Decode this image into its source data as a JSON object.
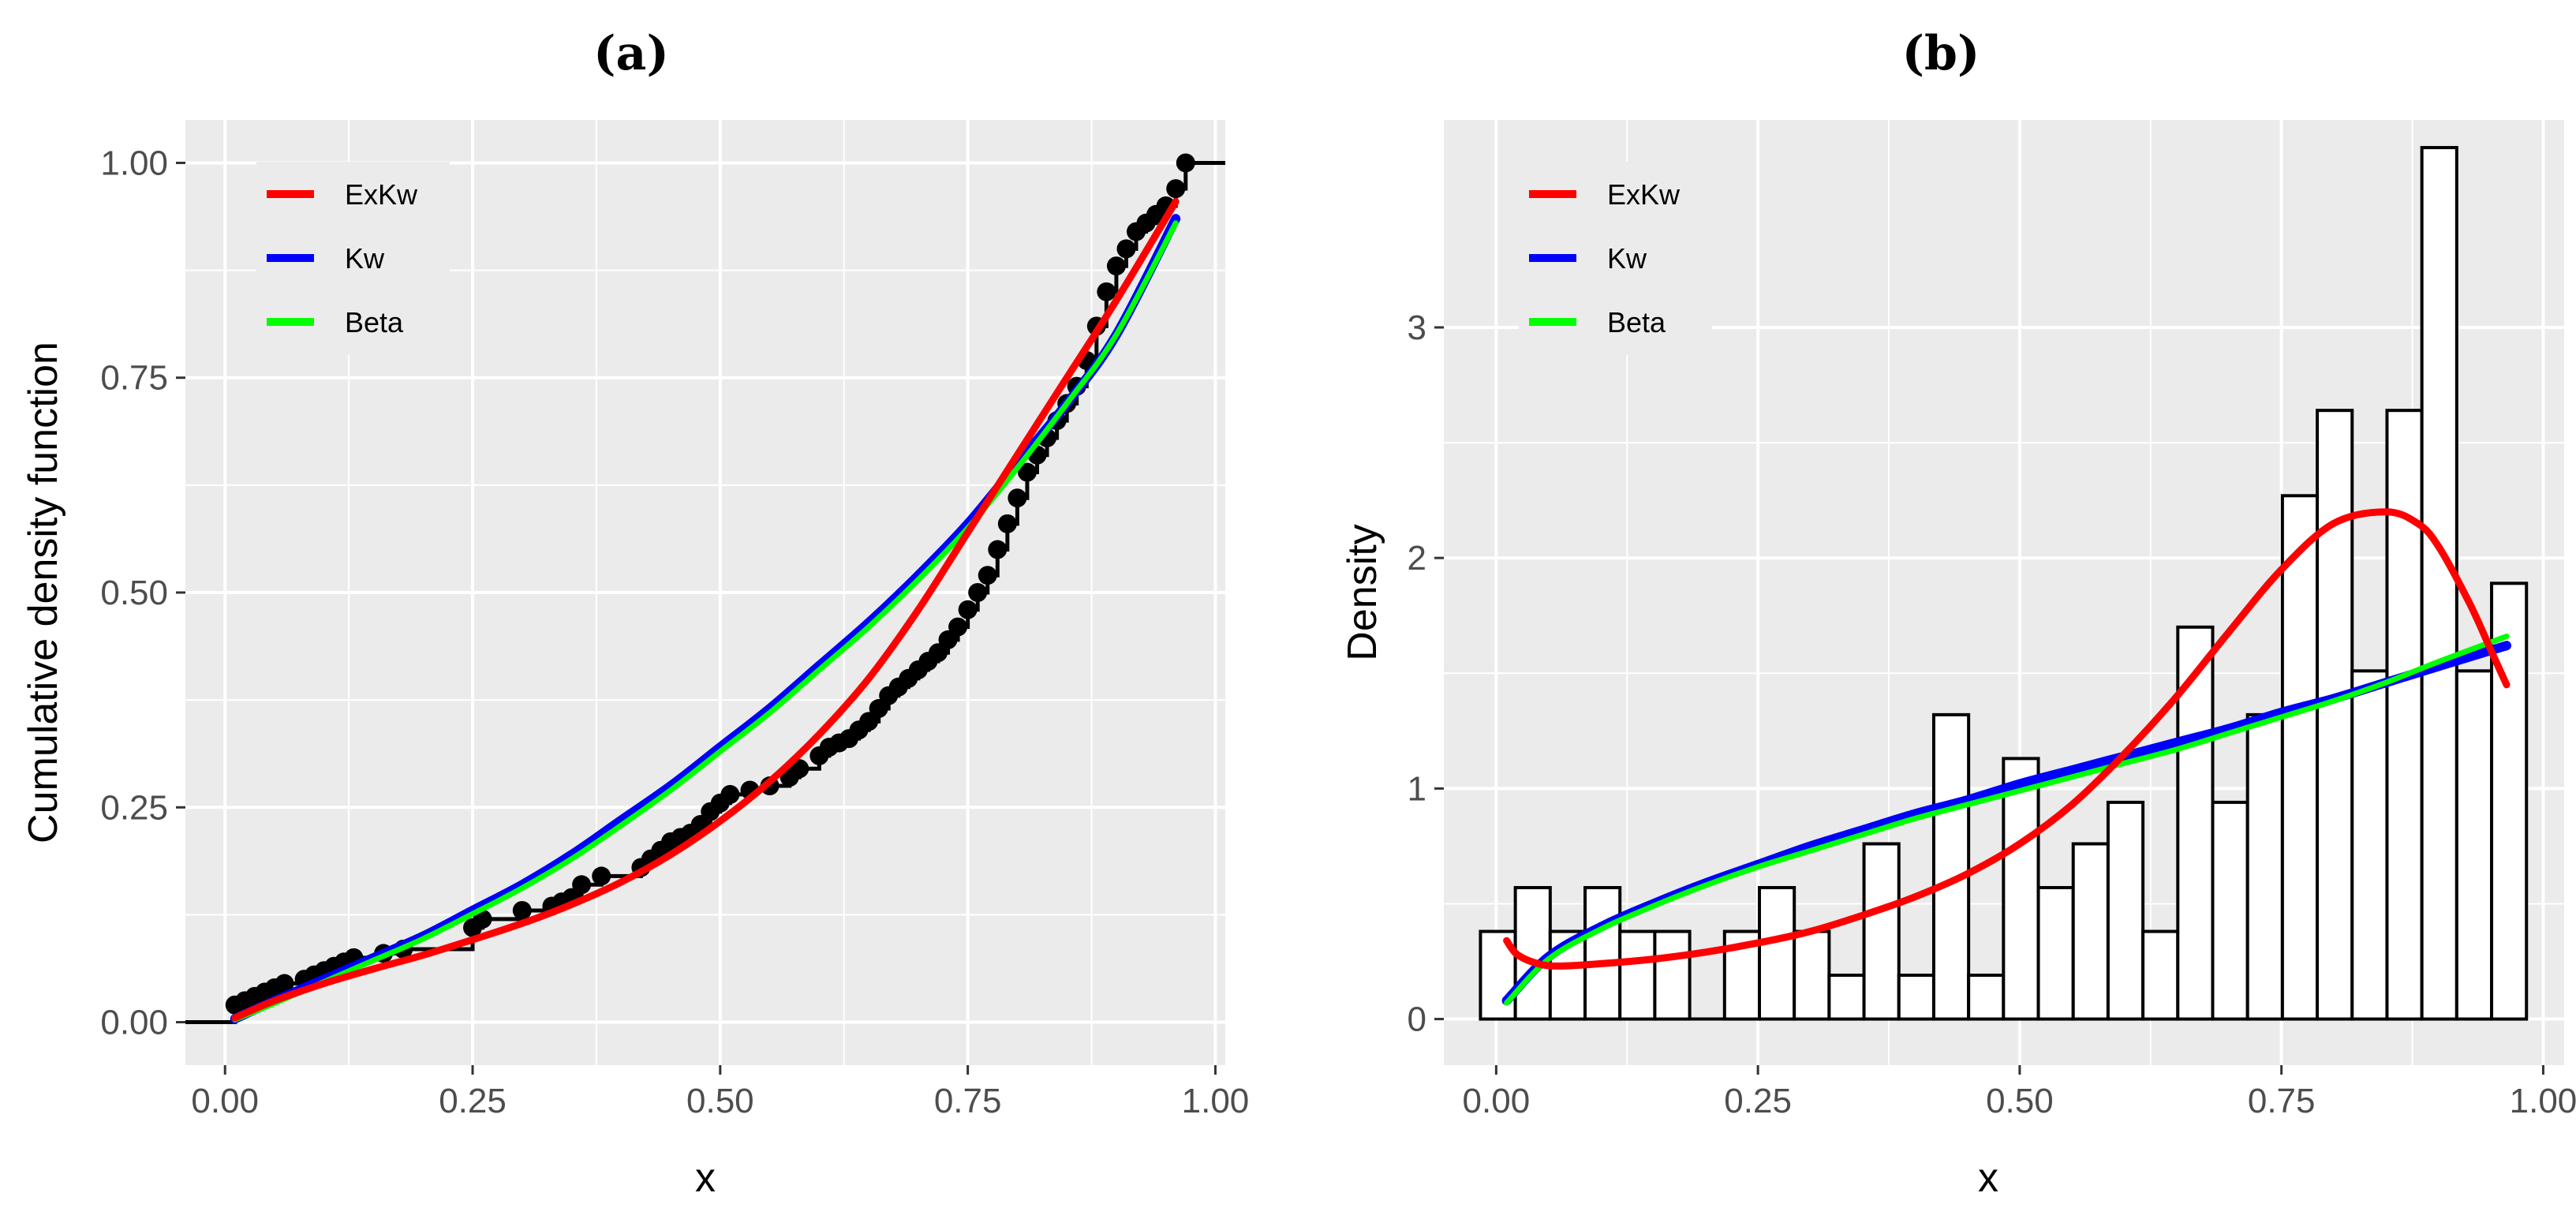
{
  "chart_data": [
    {
      "panel_title": "(a)",
      "type": "line",
      "xlabel": "x",
      "ylabel": "Cumulative density function",
      "xlim": [
        -0.04,
        1.01
      ],
      "ylim": [
        -0.05,
        1.05
      ],
      "x_ticks": [
        "0.00",
        "0.25",
        "0.50",
        "0.75",
        "1.00"
      ],
      "y_ticks": [
        "0.00",
        "0.25",
        "0.50",
        "0.75",
        "1.00"
      ],
      "grid": true,
      "legend_position": "top-left",
      "legend": [
        {
          "name": "ExKw",
          "color": "#ff0000"
        },
        {
          "name": "Kw",
          "color": "#0000ff"
        },
        {
          "name": "Beta",
          "color": "#00ff00"
        }
      ],
      "empirical_cdf": {
        "color": "#000000",
        "x": [
          0.01,
          0.02,
          0.03,
          0.04,
          0.05,
          0.06,
          0.08,
          0.09,
          0.1,
          0.11,
          0.12,
          0.13,
          0.16,
          0.18,
          0.25,
          0.26,
          0.3,
          0.33,
          0.34,
          0.35,
          0.36,
          0.38,
          0.42,
          0.43,
          0.44,
          0.45,
          0.46,
          0.47,
          0.48,
          0.49,
          0.5,
          0.51,
          0.53,
          0.55,
          0.57,
          0.58,
          0.6,
          0.61,
          0.62,
          0.63,
          0.64,
          0.65,
          0.66,
          0.67,
          0.68,
          0.69,
          0.7,
          0.71,
          0.72,
          0.73,
          0.74,
          0.75,
          0.76,
          0.77,
          0.78,
          0.79,
          0.8,
          0.81,
          0.82,
          0.83,
          0.84,
          0.85,
          0.86,
          0.87,
          0.88,
          0.89,
          0.9,
          0.91,
          0.92,
          0.93,
          0.94,
          0.95,
          0.96,
          0.97
        ],
        "y": [
          0.02,
          0.025,
          0.03,
          0.035,
          0.04,
          0.045,
          0.05,
          0.055,
          0.06,
          0.065,
          0.07,
          0.075,
          0.08,
          0.085,
          0.11,
          0.12,
          0.13,
          0.135,
          0.14,
          0.145,
          0.16,
          0.17,
          0.18,
          0.19,
          0.2,
          0.21,
          0.215,
          0.22,
          0.23,
          0.245,
          0.255,
          0.265,
          0.27,
          0.275,
          0.285,
          0.295,
          0.31,
          0.32,
          0.325,
          0.33,
          0.34,
          0.35,
          0.365,
          0.38,
          0.39,
          0.4,
          0.41,
          0.42,
          0.43,
          0.445,
          0.46,
          0.48,
          0.5,
          0.52,
          0.55,
          0.58,
          0.61,
          0.64,
          0.66,
          0.68,
          0.7,
          0.72,
          0.74,
          0.77,
          0.81,
          0.85,
          0.88,
          0.9,
          0.92,
          0.93,
          0.94,
          0.95,
          0.97,
          1.0
        ],
        "x_end": 1.01,
        "x_start": -0.04
      },
      "series": [
        {
          "name": "ExKw",
          "color": "#ff0000",
          "x": [
            0.01,
            0.05,
            0.1,
            0.15,
            0.2,
            0.25,
            0.3,
            0.35,
            0.4,
            0.45,
            0.5,
            0.55,
            0.6,
            0.65,
            0.7,
            0.75,
            0.8,
            0.85,
            0.9,
            0.96
          ],
          "y": [
            0.005,
            0.025,
            0.045,
            0.062,
            0.078,
            0.096,
            0.115,
            0.137,
            0.163,
            0.195,
            0.234,
            0.28,
            0.335,
            0.4,
            0.48,
            0.57,
            0.66,
            0.75,
            0.84,
            0.955
          ]
        },
        {
          "name": "Kw",
          "color": "#0000ff",
          "x": [
            0.01,
            0.05,
            0.1,
            0.15,
            0.2,
            0.25,
            0.3,
            0.35,
            0.4,
            0.45,
            0.5,
            0.55,
            0.6,
            0.65,
            0.7,
            0.75,
            0.8,
            0.85,
            0.9,
            0.96
          ],
          "y": [
            0.004,
            0.025,
            0.05,
            0.075,
            0.1,
            0.13,
            0.16,
            0.195,
            0.235,
            0.275,
            0.32,
            0.365,
            0.415,
            0.465,
            0.52,
            0.58,
            0.65,
            0.72,
            0.8,
            0.935
          ]
        },
        {
          "name": "Beta",
          "color": "#00ff00",
          "x": [
            0.01,
            0.05,
            0.1,
            0.15,
            0.2,
            0.25,
            0.3,
            0.35,
            0.4,
            0.45,
            0.5,
            0.55,
            0.6,
            0.65,
            0.7,
            0.75,
            0.8,
            0.85,
            0.9,
            0.96
          ],
          "y": [
            0.003,
            0.022,
            0.047,
            0.072,
            0.097,
            0.126,
            0.156,
            0.19,
            0.229,
            0.27,
            0.315,
            0.36,
            0.41,
            0.46,
            0.515,
            0.575,
            0.645,
            0.72,
            0.8,
            0.93
          ]
        }
      ]
    },
    {
      "panel_title": "(b)",
      "type": "bar",
      "xlabel": "x",
      "ylabel": "Density",
      "xlim": [
        -0.05,
        1.02
      ],
      "ylim": [
        -0.2,
        3.9
      ],
      "x_ticks": [
        "0.00",
        "0.25",
        "0.50",
        "0.75",
        "1.00"
      ],
      "y_ticks": [
        "0",
        "1",
        "2",
        "3"
      ],
      "grid": true,
      "legend_position": "top-left",
      "legend": [
        {
          "name": "ExKw",
          "color": "#ff0000"
        },
        {
          "name": "Kw",
          "color": "#0000ff"
        },
        {
          "name": "Beta",
          "color": "#00ff00"
        }
      ],
      "histogram": {
        "bin_start": -0.015,
        "bin_width": 0.0333,
        "densities": [
          0.38,
          0.57,
          0.38,
          0.57,
          0.38,
          0.38,
          0,
          0.38,
          0.57,
          0.38,
          0.19,
          0.76,
          0.19,
          1.32,
          0.19,
          1.13,
          0.57,
          0.76,
          0.94,
          0.38,
          1.7,
          0.94,
          1.32,
          2.27,
          2.64,
          1.51,
          2.64,
          3.78,
          1.51,
          1.89
        ]
      },
      "series": [
        {
          "name": "ExKw",
          "color": "#ff0000",
          "x": [
            0.01,
            0.02,
            0.04,
            0.06,
            0.1,
            0.15,
            0.2,
            0.25,
            0.3,
            0.35,
            0.4,
            0.45,
            0.5,
            0.55,
            0.6,
            0.65,
            0.7,
            0.75,
            0.8,
            0.85,
            0.88,
            0.9,
            0.93,
            0.95,
            0.965
          ],
          "y": [
            0.34,
            0.28,
            0.24,
            0.23,
            0.24,
            0.26,
            0.29,
            0.33,
            0.38,
            0.45,
            0.53,
            0.63,
            0.76,
            0.93,
            1.15,
            1.4,
            1.68,
            1.95,
            2.15,
            2.2,
            2.15,
            2.05,
            1.8,
            1.6,
            1.45
          ]
        },
        {
          "name": "Kw",
          "color": "#0000ff",
          "x": [
            0.01,
            0.05,
            0.1,
            0.15,
            0.2,
            0.25,
            0.3,
            0.35,
            0.4,
            0.45,
            0.5,
            0.55,
            0.6,
            0.65,
            0.7,
            0.75,
            0.8,
            0.85,
            0.9,
            0.965
          ],
          "y": [
            0.08,
            0.27,
            0.4,
            0.5,
            0.59,
            0.67,
            0.75,
            0.82,
            0.89,
            0.95,
            1.02,
            1.08,
            1.14,
            1.2,
            1.26,
            1.33,
            1.39,
            1.46,
            1.53,
            1.62
          ]
        },
        {
          "name": "Beta",
          "color": "#00ff00",
          "x": [
            0.01,
            0.05,
            0.1,
            0.15,
            0.2,
            0.25,
            0.3,
            0.35,
            0.4,
            0.45,
            0.5,
            0.55,
            0.6,
            0.65,
            0.7,
            0.75,
            0.8,
            0.85,
            0.9,
            0.965
          ],
          "y": [
            0.07,
            0.26,
            0.39,
            0.49,
            0.58,
            0.66,
            0.73,
            0.8,
            0.87,
            0.93,
            0.99,
            1.05,
            1.11,
            1.17,
            1.24,
            1.31,
            1.38,
            1.46,
            1.55,
            1.66
          ]
        }
      ]
    }
  ]
}
